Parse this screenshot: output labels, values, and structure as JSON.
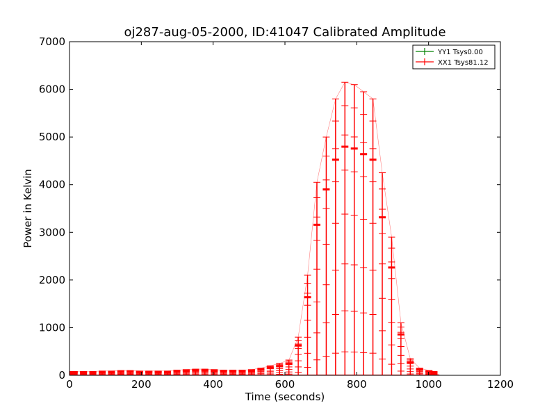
{
  "chart_data": {
    "type": "line",
    "title": "oj287-aug-05-2000, ID:41047 Calibrated Amplitude",
    "xlabel": "Time (seconds)",
    "ylabel": "Power in Kelvin",
    "xlim": [
      0,
      1200
    ],
    "ylim": [
      0,
      7000
    ],
    "xticks": [
      0,
      200,
      400,
      600,
      800,
      1000,
      1200
    ],
    "yticks": [
      0,
      1000,
      2000,
      3000,
      4000,
      5000,
      6000,
      7000
    ],
    "grid": false,
    "legend_position": "top-right",
    "series": [
      {
        "name": "YY1 Tsys0.00",
        "color": "#008000",
        "x": [
          0,
          1030
        ],
        "y": [
          0,
          0
        ]
      },
      {
        "name": "XX1 Tsys81.12",
        "color": "#ff0000",
        "x": [
          0,
          13,
          39,
          65,
          91,
          117,
          143,
          169,
          195,
          221,
          247,
          273,
          299,
          325,
          351,
          377,
          403,
          429,
          455,
          481,
          507,
          533,
          559,
          585,
          611,
          637,
          663,
          689,
          715,
          741,
          767,
          793,
          819,
          845,
          871,
          897,
          923,
          949,
          975,
          1001,
          1015,
          1030
        ],
        "y": [
          80,
          80,
          80,
          80,
          90,
          90,
          100,
          100,
          90,
          90,
          90,
          90,
          110,
          120,
          130,
          130,
          120,
          110,
          110,
          110,
          120,
          150,
          200,
          250,
          320,
          800,
          2100,
          4050,
          5000,
          5800,
          6150,
          6100,
          5950,
          5800,
          4250,
          2900,
          1100,
          350,
          150,
          100,
          80,
          0
        ]
      }
    ]
  }
}
